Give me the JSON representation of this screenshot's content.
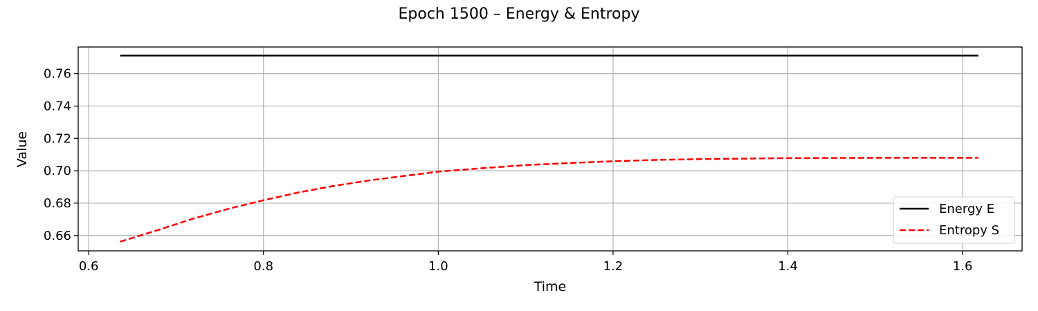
{
  "chart_data": {
    "type": "line",
    "title": "Epoch 1500 – Energy & Entropy",
    "xlabel": "Time",
    "ylabel": "Value",
    "xlim": [
      0.588,
      1.668
    ],
    "ylim": [
      0.6505,
      0.7765
    ],
    "xticks": [
      "0.6",
      "0.8",
      "1.0",
      "1.2",
      "1.4",
      "1.6"
    ],
    "yticks": [
      "0.66",
      "0.68",
      "0.70",
      "0.72",
      "0.74",
      "0.76"
    ],
    "grid": true,
    "legend_position": "lower-right",
    "x": [
      0.636,
      0.68,
      0.72,
      0.76,
      0.8,
      0.84,
      0.88,
      0.92,
      0.96,
      1.0,
      1.05,
      1.1,
      1.15,
      1.2,
      1.25,
      1.3,
      1.4,
      1.5,
      1.618
    ],
    "series": [
      {
        "name": "Energy E",
        "color": "#000000",
        "style": "solid",
        "values": [
          0.7712,
          0.7712,
          0.7712,
          0.7712,
          0.7712,
          0.7712,
          0.7712,
          0.7712,
          0.7712,
          0.7712,
          0.7712,
          0.7712,
          0.7712,
          0.7712,
          0.7712,
          0.7712,
          0.7712,
          0.7712,
          0.7712
        ]
      },
      {
        "name": "Entropy S",
        "color": "#ff0000",
        "style": "dashed",
        "values": [
          0.6562,
          0.6635,
          0.6705,
          0.6765,
          0.6818,
          0.6866,
          0.6906,
          0.694,
          0.6967,
          0.6995,
          0.7016,
          0.7035,
          0.7048,
          0.7059,
          0.7067,
          0.7072,
          0.7078,
          0.708,
          0.708
        ]
      }
    ]
  }
}
